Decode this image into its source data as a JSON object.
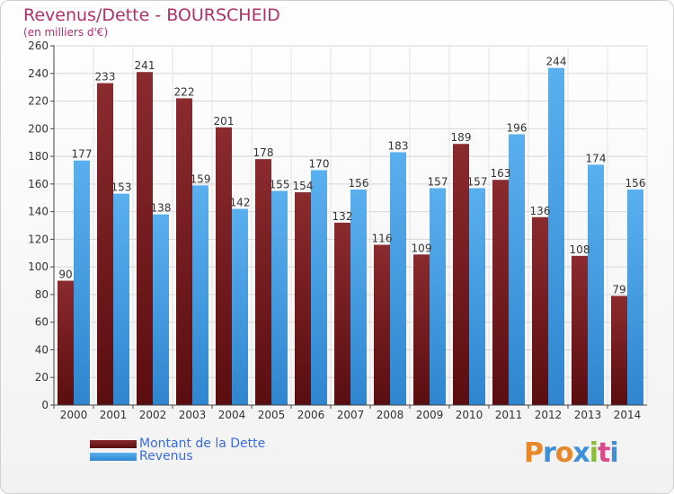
{
  "title": "Revenus/Dette - BOURSCHEID",
  "subtitle": "(en milliers d'€)",
  "colors": {
    "dette": "#7a1f24",
    "revenus": "#4aa3e6",
    "title": "#b0306a",
    "legend_text": "#3a6be0"
  },
  "chart_data": {
    "type": "bar",
    "categories": [
      "2000",
      "2001",
      "2002",
      "2003",
      "2004",
      "2005",
      "2006",
      "2007",
      "2008",
      "2009",
      "2010",
      "2011",
      "2012",
      "2013",
      "2014"
    ],
    "series": [
      {
        "name": "Montant de la Dette",
        "values": [
          90,
          233,
          241,
          222,
          201,
          178,
          154,
          132,
          116,
          109,
          189,
          163,
          136,
          108,
          79
        ]
      },
      {
        "name": "Revenus",
        "values": [
          177,
          153,
          138,
          159,
          142,
          155,
          170,
          156,
          183,
          157,
          157,
          196,
          244,
          174,
          156
        ]
      }
    ],
    "ylim": [
      0,
      260
    ],
    "yticks": [
      0,
      20,
      40,
      60,
      80,
      100,
      120,
      140,
      160,
      180,
      200,
      220,
      240,
      260
    ],
    "grid": true,
    "legend_position": "bottom-left"
  },
  "legend": {
    "dette": "Montant de la Dette",
    "revenus": "Revenus"
  },
  "logo": {
    "letters": [
      "P",
      "r",
      "o",
      "x",
      "i",
      "t",
      "i"
    ],
    "colors": [
      "#e8862a",
      "#3c8fd9",
      "#e8862a",
      "#3c8fd9",
      "#8bbd3a",
      "#d94a8a",
      "#3c8fd9"
    ]
  }
}
